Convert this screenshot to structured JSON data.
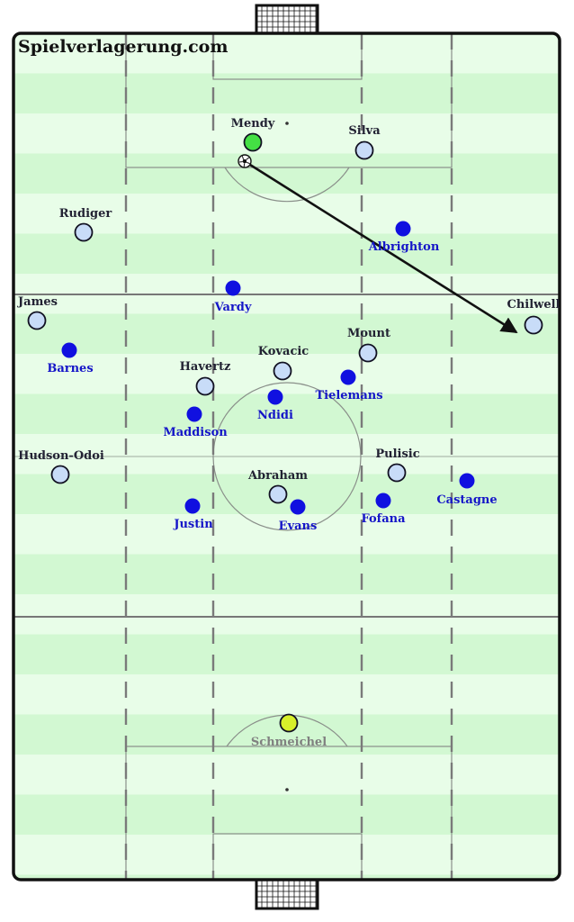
{
  "watermark": "Spielverlagerung.com",
  "colors": {
    "stripe_light": "#e8fde8",
    "stripe_dark": "#d2f8d2",
    "pitch_line": "#8a8f8a",
    "halfway_line": "#777777",
    "channel_line": "#7a7a7a",
    "border": "#111111",
    "home_fill": "#c8dcf8",
    "home_label": "#222233",
    "away_fill": "#1010e0",
    "away_label": "#1515c8",
    "keeper_home": "#44e044",
    "keeper_away": "#d8f02a",
    "keeper_away_label": "#808080",
    "pass_arrow": "#111111"
  },
  "ball": {
    "icon": "football-icon"
  },
  "pass": {
    "from": "ball",
    "to": "Chilwell"
  },
  "players": [
    {
      "id": "mendy",
      "name": "Mendy",
      "team": "home",
      "role": "keeper"
    },
    {
      "id": "silva",
      "name": "Silva",
      "team": "home"
    },
    {
      "id": "rudiger",
      "name": "Rudiger",
      "team": "home"
    },
    {
      "id": "albrighton",
      "name": "Albrighton",
      "team": "away"
    },
    {
      "id": "james",
      "name": "James",
      "team": "home"
    },
    {
      "id": "vardy",
      "name": "Vardy",
      "team": "away"
    },
    {
      "id": "chilwell",
      "name": "Chilwell",
      "team": "home"
    },
    {
      "id": "barnes",
      "name": "Barnes",
      "team": "away"
    },
    {
      "id": "mount",
      "name": "Mount",
      "team": "home"
    },
    {
      "id": "kovacic",
      "name": "Kovacic",
      "team": "home"
    },
    {
      "id": "havertz",
      "name": "Havertz",
      "team": "home"
    },
    {
      "id": "tielemans",
      "name": "Tielemans",
      "team": "away"
    },
    {
      "id": "ndidi",
      "name": "Ndidi",
      "team": "away"
    },
    {
      "id": "maddison",
      "name": "Maddison",
      "team": "away"
    },
    {
      "id": "hudson-odoi",
      "name": "Hudson-Odoi",
      "team": "home"
    },
    {
      "id": "pulisic",
      "name": "Pulisic",
      "team": "home"
    },
    {
      "id": "castagne",
      "name": "Castagne",
      "team": "away"
    },
    {
      "id": "abraham",
      "name": "Abraham",
      "team": "home"
    },
    {
      "id": "justin",
      "name": "Justin",
      "team": "away"
    },
    {
      "id": "evans",
      "name": "Evans",
      "team": "away"
    },
    {
      "id": "fofana",
      "name": "Fofana",
      "team": "away"
    },
    {
      "id": "schmeichel",
      "name": "Schmeichel",
      "team": "away",
      "role": "keeper"
    }
  ]
}
